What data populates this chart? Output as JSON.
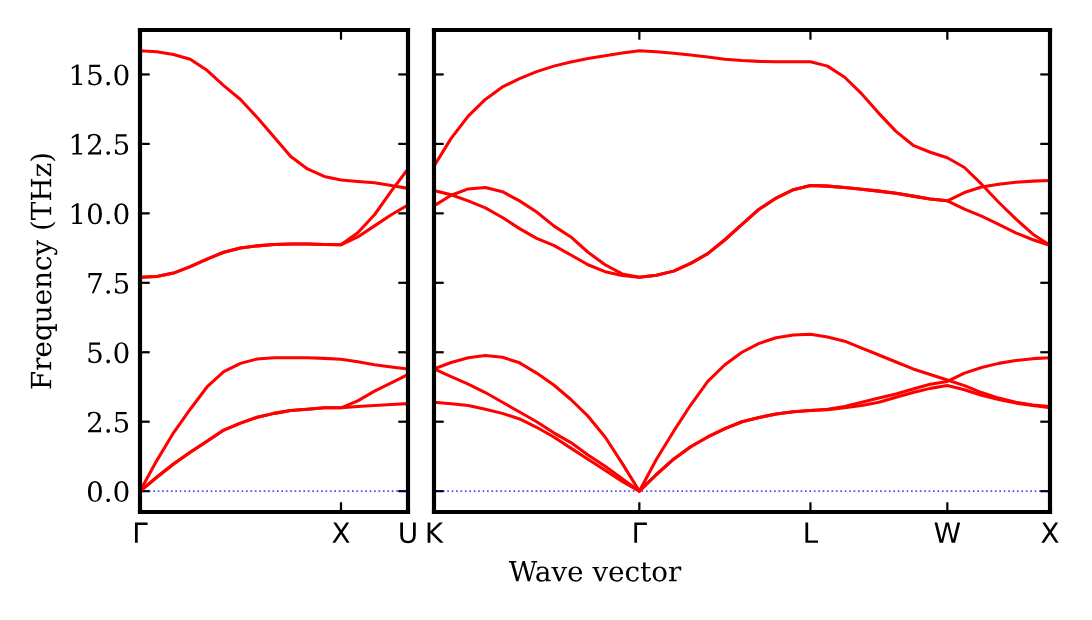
{
  "chart_data": [
    {
      "type": "line",
      "ylabel": "Frequency (THz)",
      "categories": [
        "Γ",
        null,
        null,
        null,
        null,
        null,
        null,
        null,
        null,
        null,
        null,
        null,
        "X",
        null,
        null,
        null,
        "U"
      ],
      "ylim": [
        -0.75,
        16.6
      ],
      "yticks": [
        {
          "value": 0,
          "label": "0.0"
        },
        2.5,
        {
          "value": 5,
          "label": "5.0"
        },
        7.5,
        {
          "value": 10,
          "label": "10.0"
        },
        12.5,
        {
          "value": 15,
          "label": "15.0"
        }
      ],
      "grid": false,
      "legend": false,
      "marker": "none",
      "line_style": "solid",
      "ref_lines": [
        {
          "axis": "y",
          "value": 0,
          "color": "#0000ff",
          "line_style": "dotted"
        }
      ],
      "series": [
        {
          "color": "#ff0000",
          "values": [
            15.85,
            15.82,
            15.72,
            15.55,
            15.15,
            14.6,
            14.1,
            13.45,
            12.75,
            12.05,
            11.6,
            11.33,
            11.2,
            11.15,
            11.1,
            11.0,
            10.9
          ]
        },
        {
          "color": "#ff0000",
          "values": [
            7.7,
            7.73,
            7.85,
            8.08,
            8.35,
            8.6,
            8.75,
            8.83,
            8.88,
            8.9,
            8.9,
            8.88,
            8.87,
            9.3,
            9.95,
            10.8,
            11.6
          ]
        },
        {
          "color": "#ff0000",
          "values": [
            7.7,
            7.73,
            7.85,
            8.08,
            8.35,
            8.6,
            8.75,
            8.83,
            8.88,
            8.9,
            8.9,
            8.88,
            8.87,
            9.15,
            9.55,
            9.95,
            10.3
          ]
        },
        {
          "color": "#ff0000",
          "values": [
            0,
            1.1,
            2.1,
            2.95,
            3.75,
            4.3,
            4.6,
            4.76,
            4.8,
            4.8,
            4.8,
            4.78,
            4.75,
            4.66,
            4.55,
            4.47,
            4.4
          ]
        },
        {
          "color": "#ff0000",
          "values": [
            0,
            0.5,
            0.98,
            1.4,
            1.8,
            2.2,
            2.45,
            2.66,
            2.8,
            2.9,
            2.95,
            3.0,
            3.0,
            3.25,
            3.6,
            3.9,
            4.2
          ]
        },
        {
          "color": "#ff0000",
          "values": [
            0,
            0.5,
            0.98,
            1.4,
            1.8,
            2.2,
            2.45,
            2.66,
            2.8,
            2.9,
            2.95,
            3.0,
            3.0,
            3.05,
            3.08,
            3.12,
            3.15
          ]
        }
      ]
    },
    {
      "type": "line",
      "xlabel": "Wave vector",
      "categories": [
        "K",
        null,
        null,
        null,
        null,
        null,
        null,
        null,
        null,
        null,
        null,
        null,
        "Γ",
        null,
        null,
        null,
        null,
        null,
        null,
        null,
        null,
        null,
        "L",
        null,
        null,
        null,
        null,
        null,
        null,
        null,
        "W",
        null,
        null,
        null,
        null,
        null,
        "X"
      ],
      "ylim": [
        -0.75,
        16.6
      ],
      "yticks": [
        {
          "value": 0,
          "label": null
        },
        {
          "value": 2.5,
          "label": null
        },
        {
          "value": 5,
          "label": null
        },
        {
          "value": 7.5,
          "label": null
        },
        {
          "value": 10,
          "label": null
        },
        {
          "value": 12.5,
          "label": null
        },
        {
          "value": 15,
          "label": null
        }
      ],
      "tick_labels": "x",
      "grid": false,
      "legend": false,
      "marker": "none",
      "line_style": "solid",
      "ref_lines": [
        {
          "axis": "y",
          "value": 0,
          "color": "#0000ff",
          "line_style": "dotted"
        }
      ],
      "series": [
        {
          "color": "#ff0000",
          "values": [
            11.7,
            12.7,
            13.5,
            14.1,
            14.55,
            14.85,
            15.1,
            15.3,
            15.45,
            15.57,
            15.67,
            15.77,
            15.85,
            15.82,
            15.76,
            15.7,
            15.63,
            15.55,
            15.5,
            15.47,
            15.46,
            15.46,
            15.46,
            15.3,
            14.9,
            14.3,
            13.6,
            12.95,
            12.45,
            12.2,
            12.0,
            11.65,
            11.05,
            10.4,
            9.8,
            9.25,
            8.85
          ]
        },
        {
          "color": "#ff0000",
          "values": [
            10.27,
            10.65,
            10.88,
            10.93,
            10.78,
            10.45,
            10.05,
            9.55,
            9.15,
            8.6,
            8.15,
            7.82,
            7.7,
            7.77,
            7.92,
            8.2,
            8.55,
            9.05,
            9.6,
            10.15,
            10.55,
            10.85,
            11.0,
            10.98,
            10.93,
            10.87,
            10.8,
            10.72,
            10.62,
            10.52,
            10.45,
            10.75,
            10.95,
            11.05,
            11.12,
            11.16,
            11.18
          ]
        },
        {
          "color": "#ff0000",
          "values": [
            10.82,
            10.67,
            10.45,
            10.2,
            9.85,
            9.45,
            9.1,
            8.85,
            8.5,
            8.15,
            7.9,
            7.76,
            7.7,
            7.77,
            7.92,
            8.2,
            8.55,
            9.05,
            9.6,
            10.15,
            10.55,
            10.85,
            11.0,
            10.98,
            10.93,
            10.87,
            10.8,
            10.72,
            10.62,
            10.52,
            10.45,
            10.15,
            9.9,
            9.6,
            9.3,
            9.05,
            8.85
          ]
        },
        {
          "color": "#ff0000",
          "values": [
            4.4,
            4.63,
            4.8,
            4.88,
            4.82,
            4.62,
            4.25,
            3.82,
            3.3,
            2.7,
            1.95,
            1.0,
            0,
            1.15,
            2.15,
            3.1,
            3.95,
            4.55,
            5.0,
            5.32,
            5.52,
            5.62,
            5.65,
            5.55,
            5.4,
            5.15,
            4.9,
            4.65,
            4.4,
            4.2,
            4.0,
            3.8,
            3.55,
            3.35,
            3.2,
            3.1,
            3.05
          ]
        },
        {
          "color": "#ff0000",
          "values": [
            4.4,
            4.12,
            3.85,
            3.55,
            3.2,
            2.85,
            2.5,
            2.1,
            1.75,
            1.3,
            0.9,
            0.45,
            0,
            0.6,
            1.15,
            1.6,
            1.95,
            2.25,
            2.5,
            2.65,
            2.78,
            2.86,
            2.9,
            2.95,
            3.05,
            3.2,
            3.35,
            3.5,
            3.68,
            3.85,
            3.95,
            4.25,
            4.45,
            4.6,
            4.7,
            4.77,
            4.8
          ]
        },
        {
          "color": "#ff0000",
          "values": [
            3.2,
            3.15,
            3.08,
            2.95,
            2.8,
            2.6,
            2.3,
            1.95,
            1.55,
            1.15,
            0.75,
            0.35,
            0,
            0.6,
            1.15,
            1.6,
            1.95,
            2.25,
            2.5,
            2.65,
            2.78,
            2.86,
            2.9,
            2.93,
            3.0,
            3.08,
            3.2,
            3.38,
            3.55,
            3.7,
            3.8,
            3.65,
            3.45,
            3.3,
            3.17,
            3.08,
            3.0
          ]
        }
      ]
    }
  ]
}
